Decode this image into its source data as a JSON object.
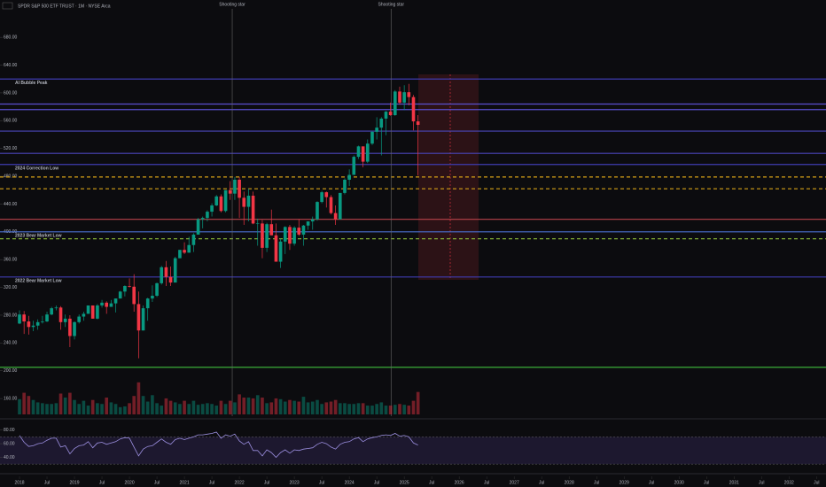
{
  "chart_data": {
    "type": "candlestick",
    "title": "SPDR S&P 500 ETF TRUST · 1M · NYSE Arca",
    "up_color": "#089981",
    "down_color": "#f23645",
    "x": [
      2018.0,
      2018.083,
      2018.167,
      2018.25,
      2018.333,
      2018.417,
      2018.5,
      2018.583,
      2018.667,
      2018.75,
      2018.833,
      2018.917,
      2019.0,
      2019.083,
      2019.167,
      2019.25,
      2019.333,
      2019.417,
      2019.5,
      2019.583,
      2019.667,
      2019.75,
      2019.833,
      2019.917,
      2020.0,
      2020.083,
      2020.167,
      2020.25,
      2020.333,
      2020.417,
      2020.5,
      2020.583,
      2020.667,
      2020.75,
      2020.833,
      2020.917,
      2021.0,
      2021.083,
      2021.167,
      2021.25,
      2021.333,
      2021.417,
      2021.5,
      2021.583,
      2021.667,
      2021.75,
      2021.833,
      2021.917,
      2022.0,
      2022.083,
      2022.167,
      2022.25,
      2022.333,
      2022.417,
      2022.5,
      2022.583,
      2022.667,
      2022.75,
      2022.833,
      2022.917,
      2023.0,
      2023.083,
      2023.167,
      2023.25,
      2023.333,
      2023.417,
      2023.5,
      2023.583,
      2023.667,
      2023.75,
      2023.833,
      2023.917,
      2024.0,
      2024.083,
      2024.167,
      2024.25,
      2024.333,
      2024.417,
      2024.5,
      2024.583,
      2024.667,
      2024.75,
      2024.833,
      2024.917,
      2025.0,
      2025.083,
      2025.167,
      2025.25
    ],
    "open": [
      268,
      281,
      271,
      263,
      265,
      270,
      271,
      281,
      290,
      291,
      270,
      275,
      250,
      270,
      278,
      282,
      294,
      275,
      294,
      298,
      292,
      297,
      304,
      314,
      322,
      321,
      296,
      258,
      290,
      304,
      308,
      326,
      349,
      335,
      327,
      362,
      374,
      370,
      381,
      396,
      418,
      420,
      429,
      438,
      451,
      430,
      460,
      455,
      475,
      449,
      436,
      452,
      412,
      412,
      377,
      411,
      395,
      357,
      386,
      407,
      383,
      406,
      396,
      409,
      415,
      418,
      443,
      457,
      450,
      427,
      418,
      456,
      475,
      482,
      508,
      523,
      501,
      527,
      544,
      550,
      563,
      573,
      568,
      602,
      586,
      601,
      594,
      559
    ],
    "high": [
      287,
      286,
      279,
      272,
      274,
      279,
      285,
      292,
      294,
      293,
      281,
      280,
      271,
      281,
      285,
      294,
      294,
      296,
      302,
      300,
      302,
      304,
      315,
      323,
      333,
      339,
      314,
      294,
      305,
      323,
      327,
      351,
      358,
      350,
      364,
      374,
      385,
      393,
      398,
      420,
      422,
      431,
      441,
      453,
      454,
      460,
      473,
      479,
      479,
      458,
      462,
      458,
      419,
      417,
      413,
      432,
      412,
      390,
      408,
      410,
      408,
      418,
      410,
      415,
      422,
      444,
      459,
      458,
      453,
      438,
      456,
      477,
      490,
      510,
      524,
      523,
      533,
      545,
      565,
      565,
      574,
      586,
      604,
      609,
      611,
      613,
      597,
      568
    ],
    "low": [
      267,
      253,
      252,
      257,
      259,
      268,
      270,
      280,
      287,
      259,
      263,
      234,
      245,
      268,
      272,
      282,
      275,
      274,
      291,
      282,
      292,
      284,
      304,
      307,
      320,
      285,
      218,
      258,
      272,
      299,
      306,
      324,
      322,
      322,
      328,
      362,
      368,
      370,
      371,
      396,
      405,
      415,
      422,
      437,
      428,
      428,
      446,
      446,
      420,
      410,
      415,
      411,
      380,
      362,
      371,
      395,
      357,
      348,
      368,
      374,
      380,
      394,
      380,
      403,
      403,
      416,
      441,
      435,
      425,
      410,
      419,
      454,
      466,
      482,
      505,
      493,
      499,
      525,
      533,
      510,
      539,
      567,
      567,
      583,
      575,
      582,
      546,
      481
    ],
    "close": [
      281,
      271,
      263,
      265,
      270,
      271,
      281,
      290,
      291,
      270,
      275,
      250,
      270,
      278,
      282,
      294,
      275,
      294,
      298,
      292,
      297,
      304,
      314,
      322,
      321,
      296,
      258,
      290,
      304,
      308,
      326,
      349,
      335,
      327,
      362,
      374,
      370,
      381,
      396,
      418,
      420,
      429,
      438,
      451,
      430,
      460,
      455,
      475,
      449,
      436,
      452,
      412,
      412,
      377,
      411,
      395,
      357,
      386,
      407,
      383,
      406,
      396,
      409,
      415,
      418,
      443,
      457,
      450,
      427,
      418,
      456,
      475,
      482,
      508,
      523,
      501,
      527,
      544,
      550,
      563,
      573,
      568,
      602,
      586,
      601,
      594,
      559,
      554
    ],
    "volume": [
      1900,
      2700,
      2300,
      1800,
      1500,
      1400,
      1300,
      1300,
      1400,
      2600,
      2100,
      2700,
      1800,
      1300,
      1700,
      1100,
      1800,
      1400,
      1300,
      2100,
      1500,
      1300,
      900,
      1000,
      1400,
      2300,
      4000,
      2300,
      1600,
      2400,
      1400,
      1100,
      2000,
      1700,
      1500,
      1300,
      1700,
      1300,
      1700,
      1200,
      1300,
      1400,
      1300,
      1100,
      1700,
      1300,
      1700,
      1500,
      2500,
      2100,
      2100,
      2000,
      2400,
      2100,
      1400,
      1500,
      2000,
      1900,
      1600,
      1800,
      1700,
      1600,
      2200,
      1500,
      1600,
      1800,
      1300,
      1500,
      1600,
      1800,
      1400,
      1400,
      1300,
      1300,
      1400,
      1400,
      1100,
      1100,
      1300,
      1500,
      1100,
      1100,
      1200,
      1300,
      1200,
      1100,
      1700,
      2800
    ],
    "volume_lim": [
      0,
      4200
    ],
    "rsi": {
      "color": "#9c8fe0",
      "band": [
        30,
        70
      ],
      "band_color": "#2a2144",
      "values": [
        72,
        62,
        56,
        57,
        60,
        61,
        65,
        68,
        68,
        55,
        57,
        45,
        53,
        57,
        58,
        63,
        54,
        61,
        62,
        59,
        61,
        63,
        67,
        69,
        68,
        55,
        42,
        52,
        56,
        57,
        62,
        67,
        62,
        59,
        66,
        68,
        66,
        68,
        70,
        73,
        73,
        74,
        75,
        77,
        68,
        73,
        71,
        74,
        64,
        59,
        63,
        50,
        50,
        42,
        51,
        47,
        40,
        47,
        51,
        46,
        51,
        50,
        52,
        53,
        54,
        59,
        62,
        60,
        55,
        52,
        59,
        62,
        63,
        67,
        69,
        63,
        67,
        69,
        70,
        72,
        73,
        72,
        75,
        71,
        72,
        70,
        61,
        58
      ],
      "ylim": [
        25,
        90
      ],
      "yticks": [
        {
          "value": 80,
          "label": "80.00"
        },
        {
          "value": 60,
          "label": "60.00"
        },
        {
          "value": 40,
          "label": "40.00"
        }
      ]
    },
    "xlim": [
      2017.645,
      2032.56
    ],
    "xticks": [
      2018,
      {
        "value": 2018.5,
        "label": "Jul"
      },
      2019,
      {
        "value": 2019.5,
        "label": "Jul"
      },
      2020,
      {
        "value": 2020.5,
        "label": "Jul"
      },
      2021,
      {
        "value": 2021.5,
        "label": "Jul"
      },
      2022,
      {
        "value": 2022.5,
        "label": "Jul"
      },
      2023,
      {
        "value": 2023.5,
        "label": "Jul"
      },
      2024,
      {
        "value": 2024.5,
        "label": "Jul"
      },
      2025,
      {
        "value": 2025.5,
        "label": "Jul"
      },
      2026,
      {
        "value": 2026.5,
        "label": "Jul"
      },
      2027,
      {
        "value": 2027.5,
        "label": "Jul"
      },
      2028,
      {
        "value": 2028.5,
        "label": "Jul"
      },
      2029,
      {
        "value": 2029.5,
        "label": "Jul"
      },
      2030,
      {
        "value": 2030.5,
        "label": "Jul"
      },
      2031,
      {
        "value": 2031.5,
        "label": "Jul"
      },
      2032,
      {
        "value": 2032.5,
        "label": "Jul"
      }
    ],
    "ylim": [
      141,
      721
    ],
    "yticks": [
      {
        "value": 160,
        "label": "160.00"
      },
      {
        "value": 200,
        "label": "200.00"
      },
      {
        "value": 240,
        "label": "240.00"
      },
      {
        "value": 280,
        "label": "280.00"
      },
      {
        "value": 320,
        "label": "320.00"
      },
      {
        "value": 360,
        "label": "360.00"
      },
      {
        "value": 400,
        "label": "400.00"
      },
      {
        "value": 440,
        "label": "440.00"
      },
      {
        "value": 480,
        "label": "480.00"
      },
      {
        "value": 520,
        "label": "520.00"
      },
      {
        "value": 560,
        "label": "560.00"
      },
      {
        "value": 600,
        "label": "600.00"
      },
      {
        "value": 640,
        "label": "640.00"
      },
      {
        "value": 680,
        "label": "680.00"
      }
    ],
    "levels": [
      {
        "name": "AI Bubble Peak",
        "value": 620,
        "color": "#3f3bb0",
        "style": "solid"
      },
      {
        "value": 584,
        "color": "#5a4fd0",
        "style": "solid"
      },
      {
        "value": 576,
        "color": "#5a4fd0",
        "style": "solid"
      },
      {
        "value": 545,
        "color": "#4a45b8",
        "style": "solid"
      },
      {
        "value": 513,
        "color": "#4a45b8",
        "style": "solid"
      },
      {
        "name": "2024 Correction Low",
        "value": 497,
        "color": "#3f3bb0",
        "style": "solid"
      },
      {
        "value": 479,
        "color": "#d4a017",
        "style": "dashed"
      },
      {
        "value": 462,
        "color": "#d4a017",
        "style": "dashed"
      },
      {
        "value": 418,
        "color": "#b8424a",
        "style": "solid"
      },
      {
        "name": "2023 Bear Market Low",
        "value": 400,
        "color": "#4a6fd0",
        "style": "solid"
      },
      {
        "value": 390,
        "color": "#8fbf3a",
        "style": "dashed"
      },
      {
        "name": "2022 Bear Market Low",
        "value": 335,
        "color": "#3f3bb0",
        "style": "solid"
      },
      {
        "value": 205,
        "color": "#3fbf3f",
        "style": "solid"
      }
    ],
    "annotations": [
      {
        "text": "Shooting star",
        "x": 2021.87
      },
      {
        "text": "Shooting star",
        "x": 2024.76
      }
    ]
  }
}
